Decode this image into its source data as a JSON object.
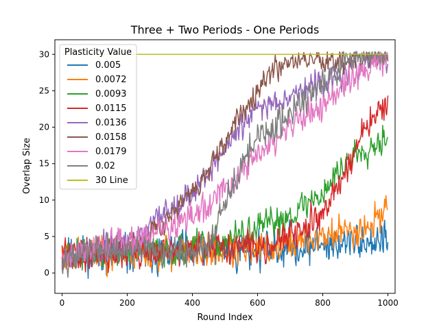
{
  "chart_data": {
    "type": "line",
    "title": "Three + Two Periods - One Periods",
    "xlabel": "Round Index",
    "ylabel": "Overlap Size",
    "xlim": [
      -22,
      1022
    ],
    "ylim": [
      -2.8,
      32.0
    ],
    "xticks": [
      0,
      200,
      400,
      600,
      800,
      1000
    ],
    "yticks": [
      0,
      5,
      10,
      15,
      20,
      25,
      30
    ],
    "grid": false,
    "legend": {
      "title": "Plasticity Value",
      "placement": "top-left"
    },
    "series": [
      {
        "name": "0.005",
        "color": "#1f77b4",
        "type": "noise",
        "anchors": [
          [
            0,
            2.5
          ],
          [
            300,
            2.8
          ],
          [
            600,
            3.2
          ],
          [
            850,
            4.0
          ],
          [
            1000,
            4.5
          ]
        ],
        "amp": 2.2,
        "seed": 11
      },
      {
        "name": "0.0072",
        "color": "#ff7f0e",
        "type": "noise",
        "anchors": [
          [
            0,
            2.5
          ],
          [
            300,
            2.8
          ],
          [
            600,
            3.0
          ],
          [
            700,
            4.0
          ],
          [
            850,
            5.5
          ],
          [
            950,
            6.5
          ],
          [
            1000,
            9.5
          ]
        ],
        "amp": 2.0,
        "seed": 23
      },
      {
        "name": "0.0093",
        "color": "#2ca02c",
        "type": "noise",
        "anchors": [
          [
            0,
            2.5
          ],
          [
            450,
            3.5
          ],
          [
            600,
            6.0
          ],
          [
            700,
            8.0
          ],
          [
            800,
            11.0
          ],
          [
            850,
            14.0
          ],
          [
            900,
            16.5
          ],
          [
            950,
            17.5
          ],
          [
            1000,
            19.0
          ]
        ],
        "amp": 1.8,
        "seed": 37
      },
      {
        "name": "0.0115",
        "color": "#d62728",
        "type": "noise",
        "anchors": [
          [
            0,
            2.5
          ],
          [
            400,
            3.0
          ],
          [
            500,
            3.5
          ],
          [
            650,
            4.0
          ],
          [
            750,
            6.0
          ],
          [
            800,
            8.5
          ],
          [
            850,
            12.0
          ],
          [
            900,
            17.0
          ],
          [
            950,
            21.0
          ],
          [
            1000,
            23.5
          ]
        ],
        "amp": 1.8,
        "seed": 41
      },
      {
        "name": "0.0136",
        "color": "#9467bd",
        "type": "noise",
        "anchors": [
          [
            0,
            2.5
          ],
          [
            200,
            4.0
          ],
          [
            250,
            5.0
          ],
          [
            300,
            8.0
          ],
          [
            400,
            11.0
          ],
          [
            500,
            17.0
          ],
          [
            550,
            20.0
          ],
          [
            600,
            22.5
          ],
          [
            700,
            24.5
          ],
          [
            800,
            26.0
          ],
          [
            900,
            28.0
          ],
          [
            960,
            29.5
          ],
          [
            1000,
            29.5
          ]
        ],
        "amp": 1.6,
        "seed": 53
      },
      {
        "name": "0.0158",
        "color": "#8c564b",
        "type": "noise",
        "anchors": [
          [
            0,
            2.5
          ],
          [
            200,
            4.0
          ],
          [
            300,
            6.5
          ],
          [
            400,
            11.0
          ],
          [
            450,
            14.0
          ],
          [
            500,
            17.5
          ],
          [
            550,
            22.0
          ],
          [
            600,
            25.5
          ],
          [
            650,
            28.0
          ],
          [
            700,
            29.3
          ],
          [
            720,
            29.5
          ],
          [
            1000,
            29.3
          ]
        ],
        "amp": 1.4,
        "seed": 67
      },
      {
        "name": "0.0179",
        "color": "#e377c2",
        "type": "noise",
        "anchors": [
          [
            0,
            2.5
          ],
          [
            250,
            5.0
          ],
          [
            350,
            6.5
          ],
          [
            450,
            9.0
          ],
          [
            550,
            14.0
          ],
          [
            600,
            16.0
          ],
          [
            700,
            20.0
          ],
          [
            800,
            23.0
          ],
          [
            900,
            27.0
          ],
          [
            1000,
            29.6
          ]
        ],
        "amp": 1.8,
        "seed": 79
      },
      {
        "name": "0.02",
        "color": "#7f7f7f",
        "type": "noise",
        "anchors": [
          [
            0,
            2.5
          ],
          [
            400,
            3.0
          ],
          [
            450,
            4.0
          ],
          [
            500,
            9.0
          ],
          [
            550,
            15.0
          ],
          [
            600,
            18.0
          ],
          [
            700,
            22.0
          ],
          [
            800,
            26.0
          ],
          [
            870,
            28.5
          ],
          [
            920,
            30.0
          ],
          [
            1000,
            30.0
          ]
        ],
        "amp": 1.8,
        "seed": 97
      },
      {
        "name": "30 Line",
        "color": "#bcbd22",
        "type": "constant",
        "value": 30
      }
    ]
  }
}
